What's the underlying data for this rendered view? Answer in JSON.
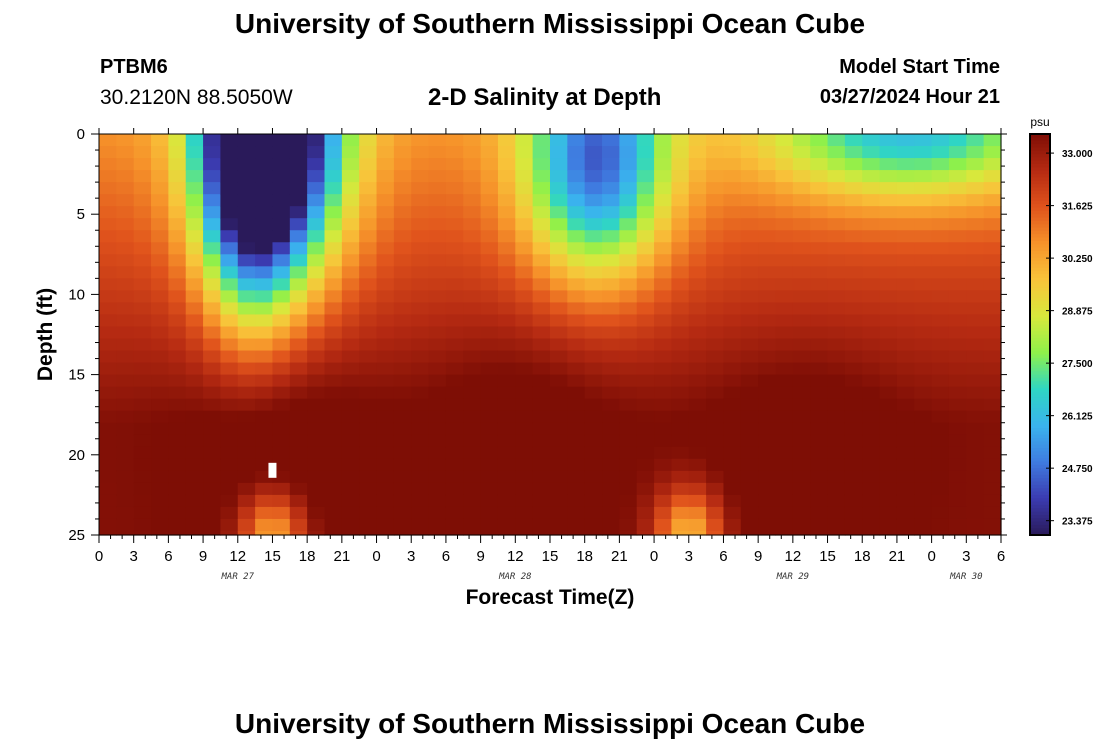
{
  "page": {
    "title": "University of Southern Mississippi Ocean Cube",
    "footer_title": "University of Southern Mississippi Ocean Cube",
    "station": "PTBM6",
    "coords": "30.2120N  88.5050W",
    "subtitle": "2-D Salinity at Depth",
    "model_start_label": "Model Start Time",
    "model_start_value": "03/27/2024 Hour 21"
  },
  "chart_data": {
    "type": "heatmap",
    "title": "2-D Salinity at Depth",
    "xlabel": "Forecast Time(Z)",
    "ylabel": "Depth (ft)",
    "x_ticks": [
      "0",
      "3",
      "6",
      "9",
      "12",
      "15",
      "18",
      "21",
      "0",
      "3",
      "6",
      "9",
      "12",
      "15",
      "18",
      "21",
      "0",
      "3",
      "6",
      "9",
      "12",
      "15",
      "18",
      "21",
      "0",
      "3",
      "6"
    ],
    "x_hours_range": [
      0,
      78
    ],
    "date_labels": [
      {
        "text": "MAR 27",
        "hour": 12
      },
      {
        "text": "MAR 28",
        "hour": 36
      },
      {
        "text": "MAR 29",
        "hour": 60
      },
      {
        "text": "MAR 30",
        "hour": 75
      }
    ],
    "y_ticks": [
      0,
      5,
      10,
      15,
      20,
      25
    ],
    "ylim": [
      0,
      25
    ],
    "y_inverted": true,
    "colorbar": {
      "unit": "psu",
      "min": 23.0,
      "max": 33.5,
      "ticks": [
        "33.000",
        "31.625",
        "30.250",
        "28.875",
        "27.500",
        "26.125",
        "24.750",
        "23.375"
      ]
    },
    "colormap": [
      "#2a1a5a",
      "#3b3bb0",
      "#3f7be0",
      "#3ab3ee",
      "#2fd6c3",
      "#8ff04a",
      "#d8e83c",
      "#f8c43a",
      "#f6922a",
      "#e0531c",
      "#b52a12",
      "#7e0e05"
    ],
    "grid_x_hours_step": 1.5,
    "grid_y_depth_step": 0.75,
    "features": [
      {
        "type": "fresh_core",
        "t": 15,
        "depth_center": 0,
        "t_spread": 6,
        "d_spread": 9,
        "strength": 10
      },
      {
        "type": "fresh_plume",
        "t": 13,
        "depth_center": 3,
        "t_spread": 4,
        "d_spread": 9,
        "strength": 5
      },
      {
        "type": "fresh_core",
        "t": 43,
        "depth_center": 2,
        "t_spread": 6,
        "d_spread": 7,
        "strength": 6.5
      },
      {
        "type": "fresh_shallow",
        "t": 70,
        "depth_center": 0,
        "t_spread": 12,
        "d_spread": 4,
        "strength": 4.5
      }
    ],
    "background_min": 27.3,
    "background_max": 33.4
  }
}
